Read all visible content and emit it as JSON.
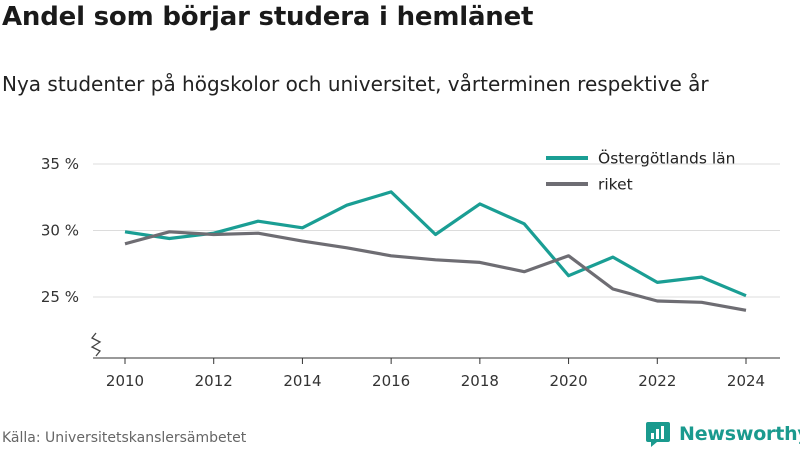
{
  "title": "Andel som börjar studera i hemlänet",
  "subtitle": "Nya studenter på högskolor och universitet, vårterminen respektive år",
  "source": "Källa: Universitetskanslersämbetet",
  "brand": {
    "name": "Newsworthy",
    "icon": "newsworthy-logo-icon",
    "color": "#1a9a8e"
  },
  "chart_data": {
    "type": "line",
    "x": [
      2010,
      2011,
      2012,
      2013,
      2014,
      2015,
      2016,
      2017,
      2018,
      2019,
      2020,
      2021,
      2022,
      2023,
      2024
    ],
    "x_ticks": [
      2010,
      2012,
      2014,
      2016,
      2018,
      2020,
      2022,
      2024
    ],
    "x_tick_labels": [
      "2010",
      "2012",
      "2014",
      "2016",
      "2018",
      "2020",
      "2022",
      "2024"
    ],
    "y_ticks": [
      25,
      30,
      35
    ],
    "y_tick_labels": [
      "25 %",
      "30 %",
      "35 %"
    ],
    "ylim": [
      20,
      35
    ],
    "xlim": [
      2009.8,
      2024.2
    ],
    "grid": true,
    "axis_break": true,
    "legend_position": "top-right",
    "series": [
      {
        "name": "Östergötlands län",
        "color": "#1a9e94",
        "values": [
          29.9,
          29.4,
          29.8,
          30.7,
          30.2,
          31.9,
          32.9,
          29.7,
          32.0,
          30.5,
          26.6,
          28.0,
          26.1,
          26.5,
          25.1
        ]
      },
      {
        "name": "riket",
        "color": "#6e6d73",
        "values": [
          29.0,
          29.9,
          29.7,
          29.8,
          29.2,
          28.7,
          28.1,
          27.8,
          27.6,
          26.9,
          28.1,
          25.6,
          24.7,
          24.6,
          24.0
        ]
      }
    ]
  }
}
